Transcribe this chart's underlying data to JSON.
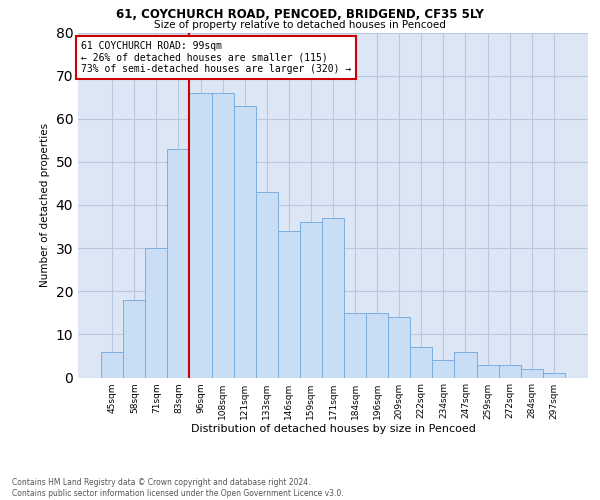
{
  "title1": "61, COYCHURCH ROAD, PENCOED, BRIDGEND, CF35 5LY",
  "title2": "Size of property relative to detached houses in Pencoed",
  "xlabel": "Distribution of detached houses by size in Pencoed",
  "ylabel": "Number of detached properties",
  "categories": [
    "45sqm",
    "58sqm",
    "71sqm",
    "83sqm",
    "96sqm",
    "108sqm",
    "121sqm",
    "133sqm",
    "146sqm",
    "159sqm",
    "171sqm",
    "184sqm",
    "196sqm",
    "209sqm",
    "222sqm",
    "234sqm",
    "247sqm",
    "259sqm",
    "272sqm",
    "284sqm",
    "297sqm"
  ],
  "values": [
    6,
    18,
    30,
    53,
    66,
    66,
    63,
    43,
    34,
    36,
    37,
    15,
    15,
    14,
    7,
    4,
    6,
    3,
    3,
    2,
    1
  ],
  "bar_color": "#c9ddf5",
  "bar_edge_color": "#7aaee0",
  "grid_color": "#b8c8de",
  "background_color": "#dce6f5",
  "vline_color": "#cc0000",
  "annotation_text": "61 COYCHURCH ROAD: 99sqm\n← 26% of detached houses are smaller (115)\n73% of semi-detached houses are larger (320) →",
  "annotation_box_color": "#ffffff",
  "annotation_box_edge": "#cc0000",
  "footer_text": "Contains HM Land Registry data © Crown copyright and database right 2024.\nContains public sector information licensed under the Open Government Licence v3.0.",
  "ylim": [
    0,
    80
  ],
  "yticks": [
    0,
    10,
    20,
    30,
    40,
    50,
    60,
    70,
    80
  ]
}
